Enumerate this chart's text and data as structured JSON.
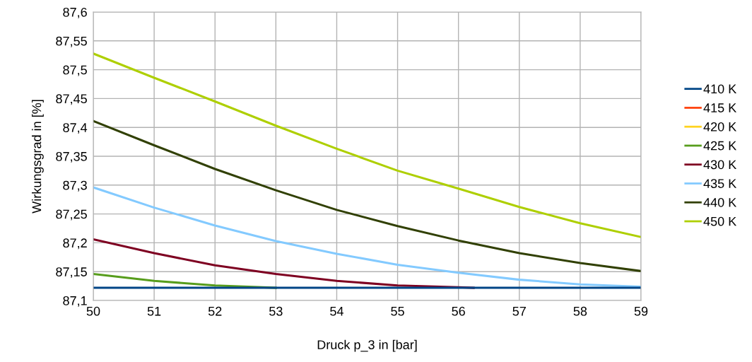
{
  "chart_data": {
    "type": "line",
    "xlabel": "Druck p_3 in [bar]",
    "ylabel": "Wirkungsgrad in [%]",
    "x": [
      50,
      51,
      52,
      53,
      54,
      55,
      56,
      57,
      58,
      59
    ],
    "xlim": [
      50,
      59
    ],
    "xticks": [
      50,
      51,
      52,
      53,
      54,
      55,
      56,
      57,
      58,
      59
    ],
    "ylim": [
      87.1,
      87.6
    ],
    "yticks": [
      {
        "value": 87.1,
        "label": "87,1"
      },
      {
        "value": 87.15,
        "label": "87,15"
      },
      {
        "value": 87.2,
        "label": "87,2"
      },
      {
        "value": 87.25,
        "label": "87,25"
      },
      {
        "value": 87.3,
        "label": "87,3"
      },
      {
        "value": 87.35,
        "label": "87,35"
      },
      {
        "value": 87.4,
        "label": "87,4"
      },
      {
        "value": 87.45,
        "label": "87,45"
      },
      {
        "value": 87.5,
        "label": "87,5"
      },
      {
        "value": 87.55,
        "label": "87,55"
      },
      {
        "value": 87.6,
        "label": "87,6"
      }
    ],
    "grid": true,
    "legend": "right",
    "marker": "none",
    "line_style": "solid",
    "series": [
      {
        "name": "410 K",
        "color": "#004586",
        "values": [
          87.122,
          87.122,
          87.122,
          87.122,
          87.122,
          87.122,
          87.122,
          87.122,
          87.122,
          87.122
        ]
      },
      {
        "name": "415 K",
        "color": "#ff420e",
        "values": [
          null,
          null,
          null,
          null,
          null,
          null,
          null,
          null,
          null,
          null
        ]
      },
      {
        "name": "420 K",
        "color": "#ffd320",
        "values": [
          null,
          null,
          null,
          null,
          null,
          null,
          null,
          null,
          null,
          null
        ]
      },
      {
        "name": "425 K",
        "color": "#579d1c",
        "x": [
          50,
          51,
          52,
          53
        ],
        "values": [
          87.146,
          87.134,
          87.126,
          87.122
        ]
      },
      {
        "name": "430 K",
        "color": "#7e0021",
        "x": [
          50,
          51,
          52,
          53,
          54,
          55,
          56,
          56.25
        ],
        "values": [
          87.206,
          87.182,
          87.161,
          87.146,
          87.134,
          87.126,
          87.123,
          87.122
        ]
      },
      {
        "name": "435 K",
        "color": "#83caff",
        "values": [
          87.296,
          87.261,
          87.23,
          87.203,
          87.181,
          87.162,
          87.148,
          87.136,
          87.128,
          87.124
        ]
      },
      {
        "name": "440 K",
        "color": "#314004",
        "values": [
          87.411,
          87.369,
          87.328,
          87.291,
          87.257,
          87.229,
          87.204,
          87.182,
          87.165,
          87.151
        ]
      },
      {
        "name": "450 K",
        "color": "#aecf00",
        "values": [
          87.528,
          87.486,
          87.445,
          87.403,
          87.363,
          87.325,
          87.294,
          87.262,
          87.234,
          87.21
        ]
      }
    ]
  }
}
